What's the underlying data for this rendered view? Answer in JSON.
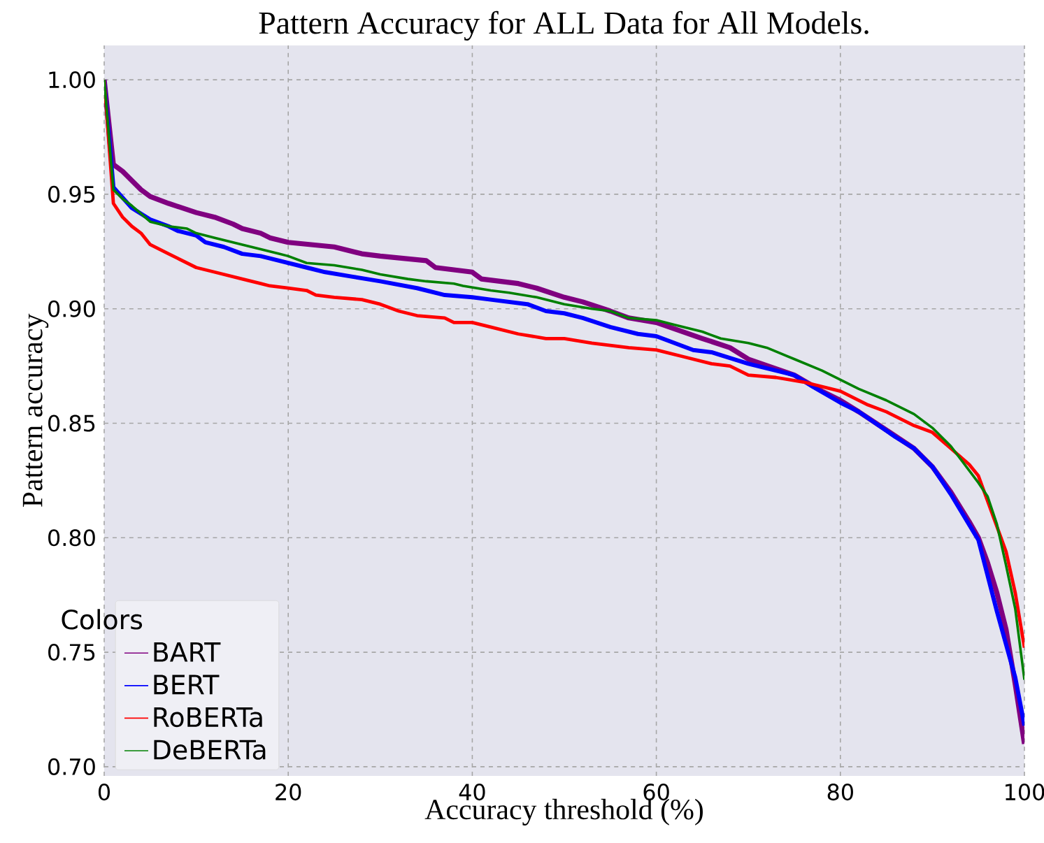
{
  "chart_data": {
    "type": "line",
    "title": "Pattern Accuracy for ALL Data for All Models.",
    "xlabel": "Accuracy threshold (%)",
    "ylabel": "Pattern accuracy",
    "legend_title": "Colors",
    "xlim": [
      0,
      100
    ],
    "ylim": [
      0.696,
      1.015
    ],
    "xticks": [
      0,
      20,
      40,
      60,
      80,
      100
    ],
    "yticks": [
      {
        "value": 0.7,
        "label": "0.70"
      },
      {
        "value": 0.75,
        "label": "0.75"
      },
      {
        "value": 0.8,
        "label": "0.80"
      },
      {
        "value": 0.85,
        "label": "0.85"
      },
      {
        "value": 0.9,
        "label": "0.90"
      },
      {
        "value": 0.95,
        "label": "0.95"
      },
      {
        "value": 1.0,
        "label": "1.00"
      }
    ],
    "grid": true,
    "legend": "bottom left",
    "line_style": "solid",
    "series": [
      {
        "name": "BART",
        "color": "#800080",
        "x": [
          0,
          1,
          2,
          4,
          5,
          7,
          10,
          12,
          14,
          15,
          17,
          18,
          20,
          25,
          28,
          30,
          35,
          36,
          38,
          40,
          41,
          45,
          47,
          50,
          52,
          55,
          57,
          60,
          65,
          68,
          70,
          75,
          78,
          80,
          82,
          85,
          88,
          90,
          92,
          94,
          95,
          96,
          97,
          98,
          99,
          100
        ],
        "values": [
          1.0,
          0.963,
          0.96,
          0.952,
          0.949,
          0.946,
          0.942,
          0.94,
          0.937,
          0.935,
          0.933,
          0.931,
          0.929,
          0.927,
          0.924,
          0.923,
          0.921,
          0.918,
          0.917,
          0.916,
          0.913,
          0.911,
          0.909,
          0.905,
          0.903,
          0.899,
          0.896,
          0.894,
          0.887,
          0.883,
          0.878,
          0.871,
          0.864,
          0.86,
          0.855,
          0.847,
          0.839,
          0.831,
          0.82,
          0.807,
          0.8,
          0.789,
          0.776,
          0.76,
          0.736,
          0.71
        ]
      },
      {
        "name": "BERT",
        "color": "#0000ff",
        "x": [
          0,
          1,
          3,
          5,
          7,
          8,
          10,
          11,
          13,
          15,
          17,
          18,
          20,
          22,
          24,
          27,
          30,
          34,
          35,
          37,
          40,
          42,
          46,
          48,
          50,
          52,
          55,
          58,
          60,
          62,
          64,
          66,
          70,
          75,
          77,
          80,
          82,
          86,
          88,
          90,
          92,
          95,
          97,
          99,
          100
        ],
        "values": [
          1.0,
          0.953,
          0.944,
          0.939,
          0.936,
          0.934,
          0.932,
          0.929,
          0.927,
          0.924,
          0.923,
          0.922,
          0.92,
          0.918,
          0.916,
          0.914,
          0.912,
          0.909,
          0.908,
          0.906,
          0.905,
          0.904,
          0.902,
          0.899,
          0.898,
          0.896,
          0.892,
          0.889,
          0.888,
          0.885,
          0.882,
          0.881,
          0.876,
          0.871,
          0.866,
          0.859,
          0.855,
          0.844,
          0.839,
          0.831,
          0.819,
          0.799,
          0.768,
          0.739,
          0.718
        ]
      },
      {
        "name": "RoBERTa",
        "color": "#ff0000",
        "x": [
          0,
          1,
          2,
          3,
          4,
          5,
          7,
          8,
          10,
          12,
          15,
          17,
          18,
          20,
          22,
          23,
          25,
          28,
          30,
          32,
          34,
          37,
          38,
          40,
          42,
          45,
          48,
          50,
          53,
          57,
          60,
          63,
          66,
          68,
          70,
          73,
          76,
          78,
          80,
          83,
          85,
          88,
          90,
          92,
          94,
          95,
          96,
          98,
          99,
          100
        ],
        "values": [
          1.0,
          0.946,
          0.94,
          0.936,
          0.933,
          0.928,
          0.924,
          0.922,
          0.918,
          0.916,
          0.913,
          0.911,
          0.91,
          0.909,
          0.908,
          0.906,
          0.905,
          0.904,
          0.902,
          0.899,
          0.897,
          0.896,
          0.894,
          0.894,
          0.892,
          0.889,
          0.887,
          0.887,
          0.885,
          0.883,
          0.882,
          0.879,
          0.876,
          0.875,
          0.871,
          0.87,
          0.868,
          0.866,
          0.864,
          0.858,
          0.855,
          0.849,
          0.846,
          0.839,
          0.832,
          0.827,
          0.816,
          0.794,
          0.776,
          0.752
        ]
      },
      {
        "name": "DeBERTa",
        "color": "#008000",
        "x": [
          0,
          1,
          2,
          3,
          5,
          7,
          9,
          10,
          12,
          14,
          15,
          17,
          19,
          20,
          22,
          25,
          28,
          30,
          33,
          35,
          38,
          39,
          42,
          44,
          47,
          50,
          53,
          55,
          57,
          60,
          62,
          65,
          67,
          70,
          72,
          75,
          78,
          80,
          82,
          85,
          88,
          90,
          92,
          95,
          96,
          97,
          98,
          99,
          100
        ],
        "values": [
          1.0,
          0.952,
          0.948,
          0.945,
          0.938,
          0.936,
          0.935,
          0.933,
          0.931,
          0.929,
          0.928,
          0.926,
          0.924,
          0.923,
          0.92,
          0.919,
          0.917,
          0.915,
          0.913,
          0.912,
          0.911,
          0.91,
          0.908,
          0.907,
          0.905,
          0.902,
          0.9,
          0.899,
          0.896,
          0.895,
          0.893,
          0.89,
          0.887,
          0.885,
          0.883,
          0.878,
          0.873,
          0.869,
          0.865,
          0.86,
          0.854,
          0.848,
          0.84,
          0.824,
          0.818,
          0.806,
          0.788,
          0.769,
          0.738
        ]
      }
    ]
  }
}
